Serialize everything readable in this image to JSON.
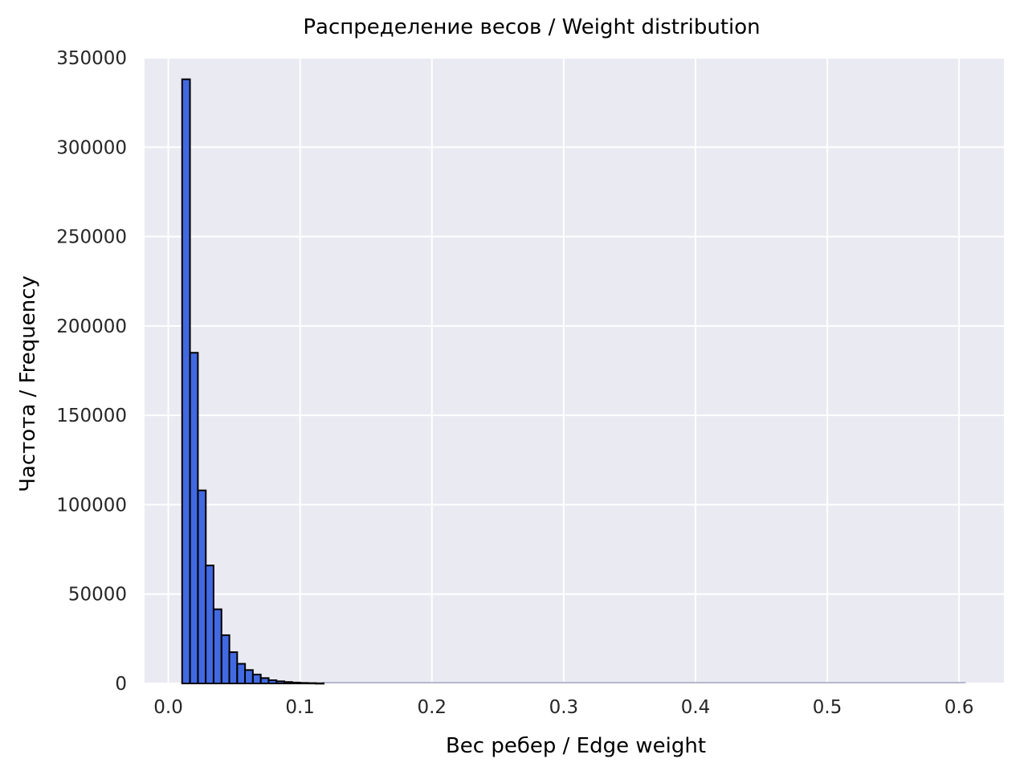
{
  "chart_data": {
    "type": "bar",
    "title": "Распределение весов / Weight distribution",
    "xlabel": "Вес ребер / Edge weight",
    "ylabel": "Частота / Frequency",
    "xlim": [
      -0.018,
      0.634
    ],
    "ylim": [
      0,
      350000
    ],
    "xticks": [
      "0.0",
      "0.1",
      "0.2",
      "0.3",
      "0.4",
      "0.5",
      "0.6"
    ],
    "yticks": [
      "0",
      "50000",
      "100000",
      "150000",
      "200000",
      "250000",
      "300000",
      "350000"
    ],
    "bin_width": 0.00596,
    "bin_starts": [
      0.0105,
      0.0165,
      0.0225,
      0.0284,
      0.0344,
      0.0404,
      0.0463,
      0.0523,
      0.0582,
      0.0642,
      0.0702,
      0.0761,
      0.0821,
      0.088,
      0.094,
      0.1,
      0.1059,
      0.1119
    ],
    "values": [
      338000,
      185000,
      108000,
      66000,
      41500,
      27000,
      17500,
      11000,
      7500,
      5000,
      3000,
      1800,
      1200,
      800,
      500,
      300,
      200,
      100
    ],
    "tail_range": [
      0.117,
      0.605
    ],
    "grid": true,
    "colors": {
      "bar": "#4169e1",
      "bar_edge": "#000000",
      "plot_background": "#eaeaf2",
      "grid": "#ffffff",
      "tail": "#b7b7cf"
    }
  }
}
